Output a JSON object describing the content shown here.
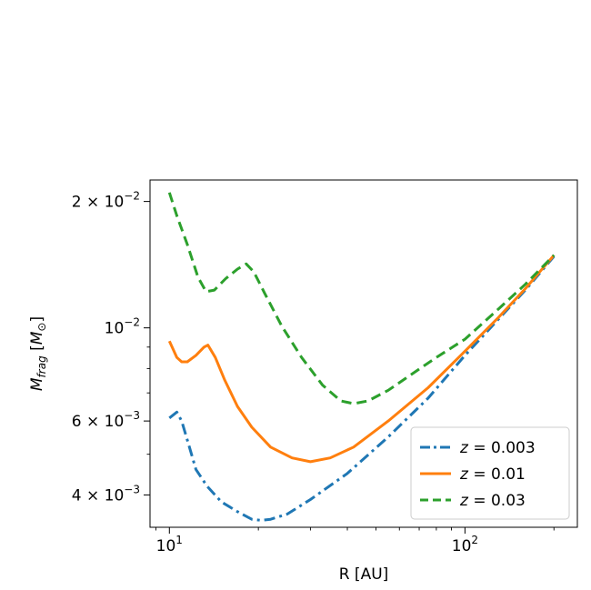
{
  "chart_data": {
    "type": "line",
    "xlabel": "R [AU]",
    "ylabel": "M_frag [M_⊙]",
    "xscale": "log",
    "yscale": "log",
    "xlim": [
      8.6,
      240
    ],
    "ylim": [
      0.00335,
      0.0225
    ],
    "grid": false,
    "legend_position": "lower right",
    "x_ticks": [
      {
        "value": 10,
        "base": "10",
        "exp": "1"
      },
      {
        "value": 100,
        "base": "10",
        "exp": "2"
      }
    ],
    "y_ticks": [
      {
        "value": 0.004,
        "mant": "4",
        "base": "10",
        "exp": "−3"
      },
      {
        "value": 0.006,
        "mant": "6",
        "base": "10",
        "exp": "−3"
      },
      {
        "value": 0.01,
        "mant": "",
        "base": "10",
        "exp": "−2"
      },
      {
        "value": 0.02,
        "mant": "2",
        "base": "10",
        "exp": "−2"
      }
    ],
    "series": [
      {
        "name": "z = 0.003",
        "color": "#1f77b4",
        "style": "dashdot",
        "x": [
          10,
          10.6,
          11,
          11.6,
          12.3,
          13.4,
          15,
          17,
          19,
          20.5,
          22,
          25,
          30,
          40,
          55,
          75,
          100,
          130,
          160,
          200
        ],
        "y": [
          0.0061,
          0.0063,
          0.006,
          0.0053,
          0.0046,
          0.0042,
          0.00385,
          0.00365,
          0.0035,
          0.00348,
          0.0035,
          0.0036,
          0.0039,
          0.0045,
          0.0055,
          0.0068,
          0.0086,
          0.0105,
          0.0123,
          0.0148
        ]
      },
      {
        "name": "z = 0.01",
        "color": "#ff7f0e",
        "style": "solid",
        "x": [
          10,
          10.6,
          11,
          11.5,
          12.3,
          13.1,
          13.5,
          14.3,
          15.4,
          17,
          19,
          22,
          26,
          30,
          35,
          42,
          55,
          75,
          100,
          130,
          160,
          200
        ],
        "y": [
          0.0093,
          0.0085,
          0.0083,
          0.0083,
          0.0086,
          0.009,
          0.0091,
          0.0085,
          0.0075,
          0.0065,
          0.0058,
          0.0052,
          0.0049,
          0.0048,
          0.0049,
          0.0052,
          0.006,
          0.0072,
          0.0088,
          0.0106,
          0.0124,
          0.0149
        ]
      },
      {
        "name": "z = 0.03",
        "color": "#2ca02c",
        "style": "dashed",
        "x": [
          10,
          10.6,
          11.5,
          12.5,
          13.3,
          14.2,
          15.5,
          17,
          18.2,
          19.3,
          21,
          24,
          28,
          33,
          38,
          42,
          47,
          55,
          65,
          80,
          100,
          130,
          160,
          200
        ],
        "y": [
          0.021,
          0.0185,
          0.0158,
          0.0132,
          0.0122,
          0.0123,
          0.0131,
          0.0138,
          0.0142,
          0.0136,
          0.0121,
          0.0101,
          0.0085,
          0.0073,
          0.0067,
          0.0066,
          0.0067,
          0.0071,
          0.0077,
          0.0085,
          0.0094,
          0.0111,
          0.0127,
          0.0149
        ]
      }
    ]
  }
}
